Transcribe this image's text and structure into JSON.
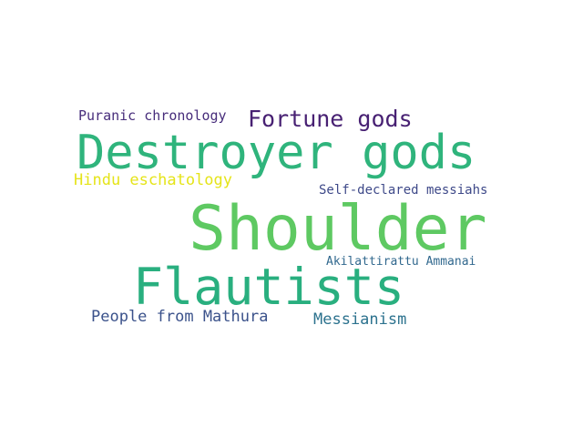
{
  "words": [
    {
      "text": "Puranic chronology",
      "color": "#472d7b"
    },
    {
      "text": "Fortune gods",
      "color": "#482173"
    },
    {
      "text": "Destroyer gods",
      "color": "#2fb47c"
    },
    {
      "text": "Hindu eschatology",
      "color": "#e5e419"
    },
    {
      "text": "Self-declared messiahs",
      "color": "#3e4989"
    },
    {
      "text": "Shoulder",
      "color": "#5ec962"
    },
    {
      "text": "Akilattirattu Ammanai",
      "color": "#31688e"
    },
    {
      "text": "Flautists",
      "color": "#29af7f"
    },
    {
      "text": "People from Mathura",
      "color": "#3b528b"
    },
    {
      "text": "Messianism",
      "color": "#2c728e"
    }
  ]
}
